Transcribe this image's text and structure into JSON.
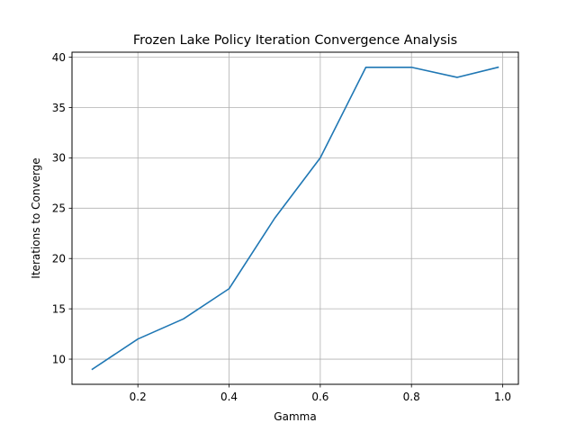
{
  "chart_data": {
    "type": "line",
    "title": "Frozen Lake Policy Iteration Convergence Analysis",
    "xlabel": "Gamma",
    "ylabel": "Iterations to Converge",
    "xlim": [
      0.0555,
      1.0345
    ],
    "ylim": [
      7.5,
      40.5
    ],
    "xticks": [
      0.2,
      0.4,
      0.6,
      0.8,
      1.0
    ],
    "xtick_labels": [
      "0.2",
      "0.4",
      "0.6",
      "0.8",
      "1.0"
    ],
    "yticks": [
      10,
      15,
      20,
      25,
      30,
      35,
      40
    ],
    "ytick_labels": [
      "10",
      "15",
      "20",
      "25",
      "30",
      "35",
      "40"
    ],
    "grid": true,
    "line_color": "#1f77b4",
    "x": [
      0.1,
      0.2,
      0.3,
      0.4,
      0.5,
      0.6,
      0.7,
      0.8,
      0.9,
      0.99
    ],
    "series": [
      {
        "values": [
          9,
          12,
          14,
          17,
          24,
          30,
          39,
          39,
          38,
          39
        ]
      }
    ]
  }
}
